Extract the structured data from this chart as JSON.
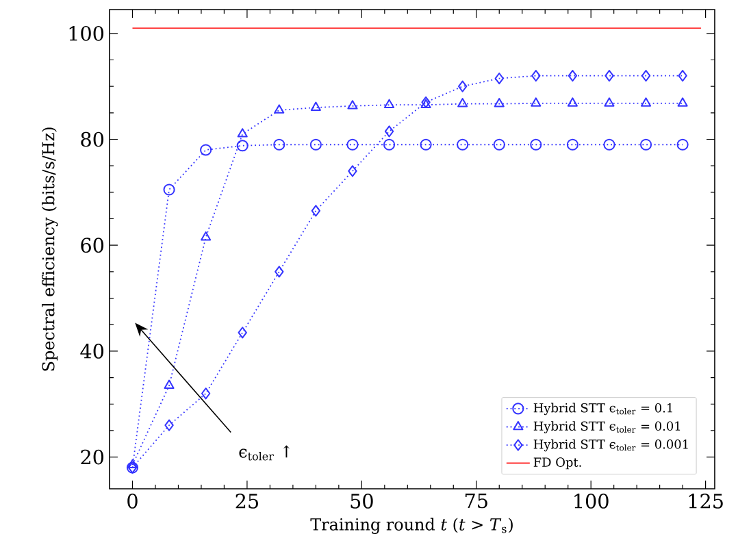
{
  "chart_data": {
    "type": "line",
    "xlabel": "Training round *t* (*t* > *T*$_{s}$)",
    "ylabel": "Spectral efficiency (bits/s/Hz)",
    "xlim": [
      -5,
      127
    ],
    "ylim": [
      14,
      104.5
    ],
    "xticks": [
      0,
      25,
      50,
      75,
      100,
      125
    ],
    "yticks": [
      20,
      40,
      60,
      80,
      100
    ],
    "grid": false,
    "legend": "bottom right",
    "series": [
      {
        "name": "Hybrid STT ϵ$_{toler}$ = 0.1",
        "color": "#3333ff",
        "marker": "circle",
        "line_style": "dotted",
        "x": [
          0,
          8,
          16,
          24,
          32,
          40,
          48,
          56,
          64,
          72,
          80,
          88,
          96,
          104,
          112,
          120
        ],
        "values": [
          18,
          70.5,
          78,
          78.8,
          79,
          79,
          79,
          79,
          79,
          79,
          79,
          79,
          79,
          79,
          79,
          79
        ]
      },
      {
        "name": "Hybrid STT ϵ$_{toler}$ = 0.01",
        "color": "#3333ff",
        "marker": "triangle",
        "line_style": "dotted",
        "x": [
          0,
          8,
          16,
          24,
          32,
          40,
          48,
          56,
          64,
          72,
          80,
          88,
          96,
          104,
          112,
          120
        ],
        "values": [
          18.5,
          33.5,
          61.5,
          81,
          85.5,
          86,
          86.3,
          86.5,
          86.5,
          86.7,
          86.7,
          86.8,
          86.8,
          86.8,
          86.8,
          86.8
        ]
      },
      {
        "name": "Hybrid STT ϵ$_{toler}$ = 0.001",
        "color": "#3333ff",
        "marker": "diamond",
        "line_style": "dotted",
        "x": [
          0,
          8,
          16,
          24,
          32,
          40,
          48,
          56,
          64,
          72,
          80,
          88,
          96,
          104,
          112,
          120
        ],
        "values": [
          18,
          26,
          32,
          43.5,
          55,
          66.5,
          74,
          81.5,
          87,
          90,
          91.5,
          92,
          92,
          92,
          92,
          92
        ]
      },
      {
        "name": "FD Opt.",
        "color": "#ff3333",
        "marker": "none",
        "line_style": "solid",
        "x": [
          0,
          124
        ],
        "values": [
          101,
          101
        ]
      }
    ],
    "annotations": [
      "ϵ$_{toler}$ ↑"
    ]
  }
}
